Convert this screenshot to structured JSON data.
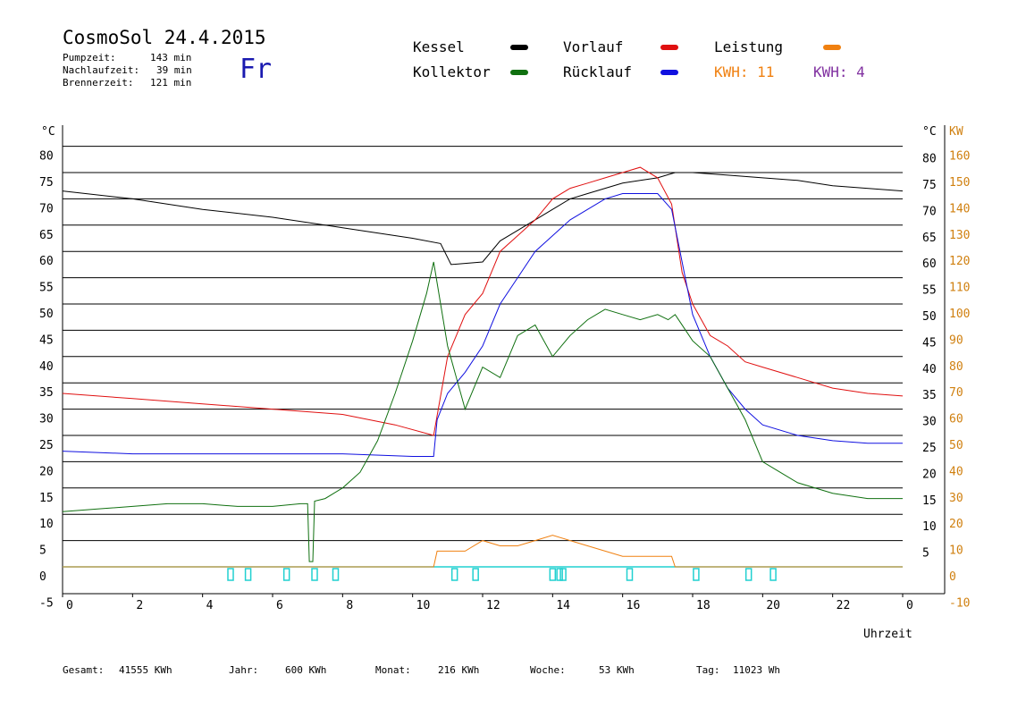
{
  "header": {
    "title": "CosmoSol 24.4.2015",
    "info": [
      {
        "label": "Pumpzeit:",
        "value": "143 min"
      },
      {
        "label": "Nachlaufzeit:",
        "value": "39 min"
      },
      {
        "label": "Brennerzeit:",
        "value": "121 min"
      }
    ],
    "day": "Fr"
  },
  "legend": {
    "items": [
      {
        "label": "Kessel",
        "color": "#000000"
      },
      {
        "label": "Vorlauf",
        "color": "#e01010"
      },
      {
        "label": "Leistung",
        "color": "#f08010"
      },
      {
        "label": "Kollektor",
        "color": "#107010"
      },
      {
        "label": "Rücklauf",
        "color": "#1010e0"
      }
    ],
    "kwh_orange": "KWH: 11",
    "kwh_purple": "KWH: 4"
  },
  "axes": {
    "left_unit": "°C",
    "right_unit": "°C",
    "right_unit2": "KW",
    "xlabel": "Uhrzeit"
  },
  "footer": [
    {
      "label": "Gesamt:",
      "value": "41555 KWh"
    },
    {
      "label": "Jahr:",
      "value": "600 KWh"
    },
    {
      "label": "Monat:",
      "value": "216 KWh"
    },
    {
      "label": "Woche:",
      "value": "53 KWh"
    },
    {
      "label": "Tag:",
      "value": "11023 Wh"
    }
  ],
  "chart_data": {
    "type": "line",
    "xlim": [
      0,
      24
    ],
    "ylim": [
      -5,
      85
    ],
    "y2lim": [
      -10,
      170
    ],
    "x_ticks": [
      "0",
      "2",
      "4",
      "6",
      "8",
      "10",
      "12",
      "14",
      "16",
      "18",
      "20",
      "22",
      "0"
    ],
    "y_ticks_left": [
      80,
      75,
      70,
      65,
      60,
      55,
      50,
      45,
      40,
      35,
      30,
      25,
      20,
      15,
      10,
      5,
      0,
      -5
    ],
    "y_ticks_right": [
      80,
      75,
      70,
      65,
      60,
      55,
      50,
      45,
      40,
      35,
      30,
      25,
      20,
      15,
      10,
      5
    ],
    "y2_ticks": [
      160,
      150,
      140,
      130,
      120,
      110,
      100,
      90,
      80,
      70,
      60,
      50,
      40,
      30,
      20,
      10,
      0,
      -10
    ],
    "grid": true,
    "series": [
      {
        "name": "Kessel",
        "color": "#000000",
        "points": [
          [
            0,
            71.5
          ],
          [
            2,
            70
          ],
          [
            4,
            68
          ],
          [
            6,
            66.5
          ],
          [
            8,
            64.5
          ],
          [
            10,
            62.5
          ],
          [
            10.8,
            61.5
          ],
          [
            11.1,
            57.5
          ],
          [
            12,
            58
          ],
          [
            12.5,
            62
          ],
          [
            13,
            64
          ],
          [
            13.5,
            66
          ],
          [
            14,
            68
          ],
          [
            14.5,
            70
          ],
          [
            15,
            71
          ],
          [
            15.5,
            72
          ],
          [
            16,
            73
          ],
          [
            16.5,
            73.5
          ],
          [
            17,
            74
          ],
          [
            17.5,
            75
          ],
          [
            18,
            75
          ],
          [
            19,
            74.5
          ],
          [
            20,
            74
          ],
          [
            21,
            73.5
          ],
          [
            22,
            72.5
          ],
          [
            24,
            71.5
          ]
        ]
      },
      {
        "name": "Vorlauf",
        "color": "#e01010",
        "points": [
          [
            0,
            33
          ],
          [
            2,
            32
          ],
          [
            4,
            31
          ],
          [
            6,
            30
          ],
          [
            8,
            29
          ],
          [
            9.5,
            27
          ],
          [
            10.6,
            25
          ],
          [
            11,
            40
          ],
          [
            11.5,
            48
          ],
          [
            12,
            52
          ],
          [
            12.5,
            60
          ],
          [
            13,
            63
          ],
          [
            13.5,
            66
          ],
          [
            14,
            70
          ],
          [
            14.5,
            72
          ],
          [
            15,
            73
          ],
          [
            15.5,
            74
          ],
          [
            16,
            75
          ],
          [
            16.5,
            76
          ],
          [
            17,
            74
          ],
          [
            17.4,
            69
          ],
          [
            17.7,
            56
          ],
          [
            18,
            50
          ],
          [
            18.5,
            44
          ],
          [
            19,
            42
          ],
          [
            19.5,
            39
          ],
          [
            20,
            38
          ],
          [
            21,
            36
          ],
          [
            22,
            34
          ],
          [
            23,
            33
          ],
          [
            24,
            32.5
          ]
        ]
      },
      {
        "name": "Rücklauf",
        "color": "#1010e0",
        "points": [
          [
            0,
            22
          ],
          [
            2,
            21.5
          ],
          [
            4,
            21.5
          ],
          [
            6,
            21.5
          ],
          [
            8,
            21.5
          ],
          [
            10,
            21
          ],
          [
            10.6,
            21
          ],
          [
            10.7,
            28
          ],
          [
            11,
            33
          ],
          [
            11.5,
            37
          ],
          [
            12,
            42
          ],
          [
            12.5,
            50
          ],
          [
            13,
            55
          ],
          [
            13.5,
            60
          ],
          [
            14,
            63
          ],
          [
            14.5,
            66
          ],
          [
            15,
            68
          ],
          [
            15.5,
            70
          ],
          [
            16,
            71
          ],
          [
            16.5,
            71
          ],
          [
            17,
            71
          ],
          [
            17.4,
            68
          ],
          [
            17.7,
            58
          ],
          [
            18,
            48
          ],
          [
            18.5,
            40
          ],
          [
            19,
            34
          ],
          [
            19.5,
            30
          ],
          [
            20,
            27
          ],
          [
            21,
            25
          ],
          [
            22,
            24
          ],
          [
            23,
            23.5
          ],
          [
            24,
            23.5
          ]
        ]
      },
      {
        "name": "Kollektor",
        "color": "#107010",
        "points": [
          [
            0,
            10.5
          ],
          [
            1,
            11
          ],
          [
            2,
            11.5
          ],
          [
            3,
            12
          ],
          [
            4,
            12
          ],
          [
            5,
            11.5
          ],
          [
            6,
            11.5
          ],
          [
            6.8,
            12
          ],
          [
            7,
            12
          ],
          [
            7.05,
            1
          ],
          [
            7.15,
            1
          ],
          [
            7.2,
            12.5
          ],
          [
            7.5,
            13
          ],
          [
            8,
            15
          ],
          [
            8.5,
            18
          ],
          [
            9,
            24
          ],
          [
            9.5,
            33
          ],
          [
            10,
            43
          ],
          [
            10.4,
            52
          ],
          [
            10.6,
            58
          ],
          [
            11,
            42
          ],
          [
            11.5,
            30
          ],
          [
            12,
            38
          ],
          [
            12.5,
            36
          ],
          [
            13,
            44
          ],
          [
            13.5,
            46
          ],
          [
            14,
            40
          ],
          [
            14.5,
            44
          ],
          [
            15,
            47
          ],
          [
            15.5,
            49
          ],
          [
            16,
            48
          ],
          [
            16.5,
            47
          ],
          [
            17,
            48
          ],
          [
            17.3,
            47
          ],
          [
            17.5,
            48
          ],
          [
            18,
            43
          ],
          [
            18.5,
            40
          ],
          [
            19,
            34
          ],
          [
            19.5,
            28
          ],
          [
            20,
            20
          ],
          [
            20.5,
            18
          ],
          [
            21,
            16
          ],
          [
            22,
            14
          ],
          [
            23,
            13
          ],
          [
            24,
            13
          ]
        ]
      },
      {
        "name": "Leistung",
        "color": "#f08010",
        "points": [
          [
            0,
            0
          ],
          [
            10.6,
            0
          ],
          [
            10.7,
            3
          ],
          [
            11.5,
            3
          ],
          [
            12,
            5
          ],
          [
            12.5,
            4
          ],
          [
            13,
            4
          ],
          [
            13.5,
            5
          ],
          [
            14,
            6
          ],
          [
            14.5,
            5
          ],
          [
            15,
            4
          ],
          [
            15.5,
            3
          ],
          [
            16,
            2
          ],
          [
            16.5,
            2
          ],
          [
            17,
            2
          ],
          [
            17.4,
            2
          ],
          [
            17.5,
            0
          ],
          [
            24,
            0
          ]
        ]
      }
    ],
    "pump_markers_hours": [
      4.8,
      5.3,
      6.4,
      7.2,
      7.8,
      11.2,
      11.8,
      14.0,
      14.2,
      14.3,
      16.2,
      18.1,
      19.6,
      20.3
    ],
    "baseline_color": "#20d0d0"
  }
}
